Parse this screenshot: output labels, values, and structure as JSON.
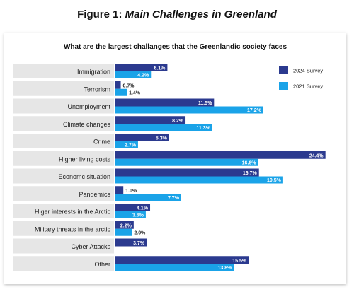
{
  "figure": {
    "prefix": "Figure 1:",
    "title": "Main Challenges in Greenland"
  },
  "colors": {
    "series_2024": "#2b3a8f",
    "series_2021": "#1aa3e8",
    "category_bg": "#e6e6e6"
  },
  "chart_data": {
    "type": "bar",
    "orientation": "horizontal",
    "title": "What are the largest challanges that the Greenlandic society faces",
    "categories": [
      "Immigration",
      "Terrorism",
      "Unemployment",
      "Climate changes",
      "Crime",
      "Higher living costs",
      "Economc situation",
      "Pandemics",
      "Higer interests in the Arctic",
      "Military threats in the arctic",
      "Cyber Attacks",
      "Other"
    ],
    "series": [
      {
        "name": "2024 Survey",
        "values": [
          6.1,
          0.7,
          11.5,
          8.2,
          6.3,
          24.4,
          16.7,
          1.0,
          4.1,
          2.2,
          3.7,
          15.5
        ],
        "labels": [
          "6.1%",
          "0.7%",
          "11.5%",
          "8.2%",
          "6.3%",
          "24.4%",
          "16.7%",
          "1.0%",
          "4.1%",
          "2.2%",
          "3.7%",
          "15.5%"
        ]
      },
      {
        "name": "2021 Survey",
        "values": [
          4.2,
          1.4,
          17.2,
          11.3,
          2.7,
          16.6,
          19.5,
          7.7,
          3.6,
          2.0,
          null,
          13.8
        ],
        "labels": [
          "4.2%",
          "1.4%",
          "17.2%",
          "11.3%",
          "2.7%",
          "16.6%",
          "19.5%",
          "7.7%",
          "3.6%",
          "2.0%",
          "",
          "13.8%"
        ]
      }
    ],
    "legend_position": "top-right",
    "grid": false
  }
}
